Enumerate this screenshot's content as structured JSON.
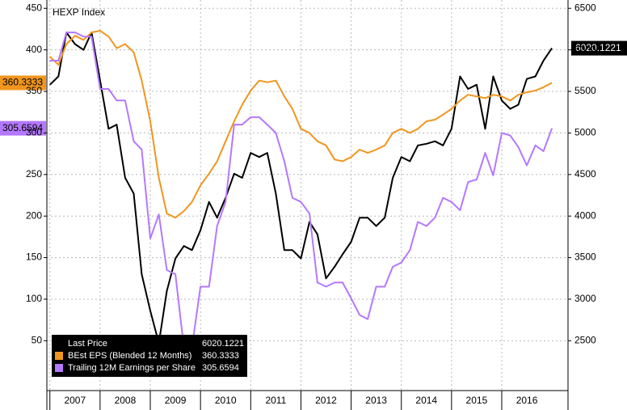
{
  "chart_data": {
    "type": "line",
    "title": "HEXP Index",
    "x": [
      2007,
      2007.17,
      2007.33,
      2007.5,
      2007.67,
      2007.83,
      2008,
      2008.17,
      2008.33,
      2008.5,
      2008.67,
      2008.83,
      2009,
      2009.17,
      2009.33,
      2009.5,
      2009.67,
      2009.83,
      2010,
      2010.17,
      2010.33,
      2010.5,
      2010.67,
      2010.83,
      2011,
      2011.17,
      2011.33,
      2011.5,
      2011.67,
      2011.83,
      2012,
      2012.17,
      2012.33,
      2012.5,
      2012.67,
      2012.83,
      2013,
      2013.17,
      2013.33,
      2013.5,
      2013.67,
      2013.83,
      2014,
      2014.17,
      2014.33,
      2014.5,
      2014.67,
      2014.83,
      2015,
      2015.17,
      2015.33,
      2015.5,
      2015.67,
      2015.83,
      2016,
      2016.17,
      2016.33,
      2016.5,
      2016.67,
      2016.83,
      2017
    ],
    "series": [
      {
        "name": "Last Price",
        "color": "#000000",
        "axis": "y2",
        "values": [
          5580,
          5680,
          6210,
          6070,
          6000,
          6210,
          5630,
          5050,
          5100,
          4460,
          4270,
          3300,
          2860,
          2470,
          3100,
          3490,
          3640,
          3590,
          3830,
          4170,
          3980,
          4220,
          4510,
          4460,
          4760,
          4710,
          4760,
          4270,
          3590,
          3590,
          3490,
          3930,
          3780,
          3250,
          3390,
          3540,
          3690,
          3980,
          3980,
          3880,
          3980,
          4460,
          4710,
          4660,
          4850,
          4870,
          4900,
          4850,
          5050,
          5680,
          5530,
          5580,
          5050,
          5680,
          5390,
          5290,
          5340,
          5650,
          5680,
          5870,
          6020.1221
        ]
      },
      {
        "name": "BEst EPS (Blended 12 Months)",
        "color": "#f0961e",
        "values": [
          392,
          382,
          407,
          417,
          412,
          421,
          423,
          416,
          402,
          407,
          397,
          363,
          314,
          246,
          203,
          198,
          206,
          217,
          237,
          251,
          266,
          290,
          314,
          334,
          351,
          363,
          361,
          363,
          344,
          329,
          305,
          300,
          290,
          285,
          268,
          266,
          271,
          280,
          276,
          280,
          285,
          300,
          305,
          300,
          305,
          314,
          316,
          322,
          329,
          339,
          346,
          344,
          342,
          346,
          344,
          339,
          346,
          349,
          351,
          355,
          360.3333
        ]
      },
      {
        "name": "Trailing 12M Earnings per Share",
        "color": "#b478ff",
        "values": [
          387,
          387,
          421,
          421,
          416,
          416,
          353,
          353,
          339,
          339,
          290,
          280,
          173,
          202,
          135,
          130,
          42,
          42,
          115,
          115,
          188,
          217,
          310,
          310,
          319,
          319,
          310,
          300,
          266,
          222,
          217,
          203,
          120,
          115,
          120,
          120,
          101,
          81,
          76,
          115,
          115,
          139,
          144,
          159,
          193,
          188,
          198,
          222,
          217,
          207,
          241,
          244,
          276,
          249,
          300,
          297,
          283,
          261,
          285,
          278,
          305.6594
        ]
      }
    ],
    "xlim": [
      2006.94,
      2017.32
    ],
    "xticks": [
      2007,
      2008,
      2009,
      2010,
      2011,
      2012,
      2013,
      2014,
      2015,
      2016
    ],
    "ylim": [
      -10,
      460
    ],
    "yticks": [
      50,
      100,
      150,
      200,
      250,
      300,
      350,
      400,
      450
    ],
    "y2lim": [
      1900,
      6600
    ],
    "y2ticks": [
      2500,
      3000,
      3500,
      4000,
      4500,
      5000,
      5500,
      6000,
      6500
    ],
    "grid": true
  }
}
